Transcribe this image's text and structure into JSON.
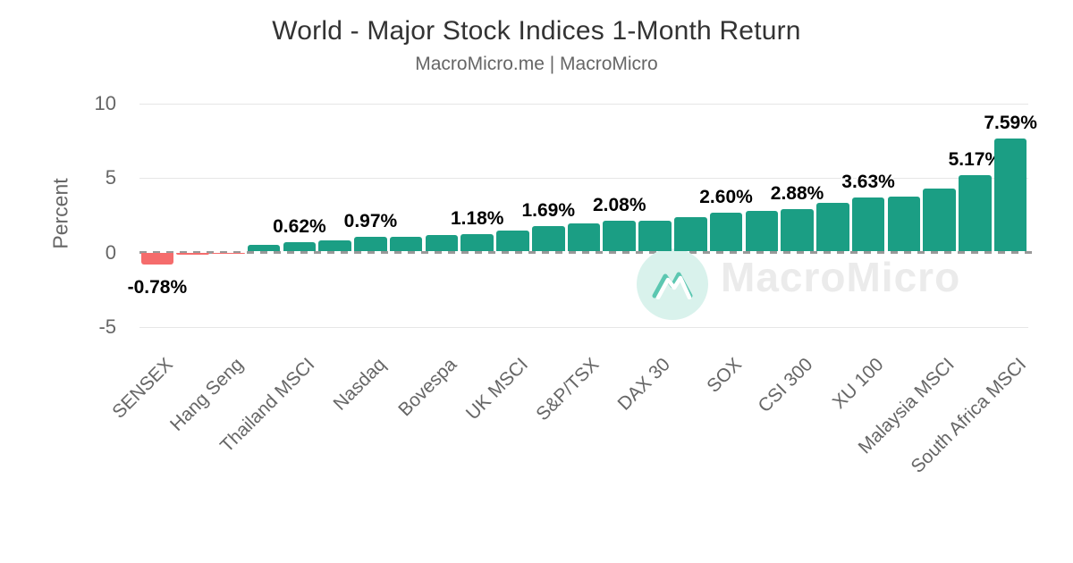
{
  "title": "World - Major Stock Indices 1-Month Return",
  "subtitle": "MacroMicro.me | MacroMicro",
  "watermark": {
    "brand": "MacroMicro",
    "logo": "macromicro-mountain-logo"
  },
  "colors": {
    "positive_bar": "#1b9e84",
    "negative_bar": "#f56c6c",
    "grid_line": "#e6e6e6",
    "zero_line": "#999999",
    "axis_text": "#666666",
    "title_text": "#333333",
    "subtitle_text": "#666666",
    "value_label_text": "#000000",
    "watermark_text": "#ebebeb",
    "watermark_circle": "#d9f2ec",
    "logo_teal": "#45c0a7"
  },
  "chart_data": {
    "type": "bar",
    "title": "World - Major Stock Indices 1-Month Return",
    "subtitle": "MacroMicro.me | MacroMicro",
    "xlabel": "",
    "ylabel": "Percent",
    "yticks": [
      10,
      5,
      0,
      -5
    ],
    "ylim": [
      -6.5,
      11
    ],
    "grid": "horizontal",
    "zero_line_style": "dashed",
    "x_labels_rotation_deg": -45,
    "note_unlabeled": "bars with empty category have no axis label in the source chart; values without value_label are estimated from bar heights",
    "bars": [
      {
        "category": "SENSEX",
        "value": -0.78,
        "value_label": "-0.78%"
      },
      {
        "category": "",
        "value": -0.1,
        "value_label": null
      },
      {
        "category": "Hang Seng",
        "value": -0.04,
        "value_label": null
      },
      {
        "category": "",
        "value": 0.45,
        "value_label": null
      },
      {
        "category": "Thailand MSCI",
        "value": 0.62,
        "value_label": "0.62%"
      },
      {
        "category": "",
        "value": 0.74,
        "value_label": null
      },
      {
        "category": "Nasdaq",
        "value": 0.97,
        "value_label": "0.97%"
      },
      {
        "category": "",
        "value": 1.02,
        "value_label": null
      },
      {
        "category": "Bovespa",
        "value": 1.1,
        "value_label": null
      },
      {
        "category": "",
        "value": 1.18,
        "value_label": "1.18%"
      },
      {
        "category": "UK MSCI",
        "value": 1.41,
        "value_label": null
      },
      {
        "category": "",
        "value": 1.69,
        "value_label": "1.69%"
      },
      {
        "category": "S&P/TSX",
        "value": 1.89,
        "value_label": null
      },
      {
        "category": "",
        "value": 2.08,
        "value_label": "2.08%"
      },
      {
        "category": "DAX 30",
        "value": 2.1,
        "value_label": null
      },
      {
        "category": "",
        "value": 2.29,
        "value_label": null
      },
      {
        "category": "SOX",
        "value": 2.6,
        "value_label": "2.60%"
      },
      {
        "category": "",
        "value": 2.72,
        "value_label": null
      },
      {
        "category": "CSI 300",
        "value": 2.88,
        "value_label": "2.88%"
      },
      {
        "category": "",
        "value": 3.3,
        "value_label": null
      },
      {
        "category": "XU 100",
        "value": 3.63,
        "value_label": "3.63%"
      },
      {
        "category": "",
        "value": 3.67,
        "value_label": null
      },
      {
        "category": "Malaysia MSCI",
        "value": 4.25,
        "value_label": null
      },
      {
        "category": "",
        "value": 5.17,
        "value_label": "5.17%"
      },
      {
        "category": "South Africa MSCI",
        "value": 7.59,
        "value_label": "7.59%"
      }
    ]
  }
}
